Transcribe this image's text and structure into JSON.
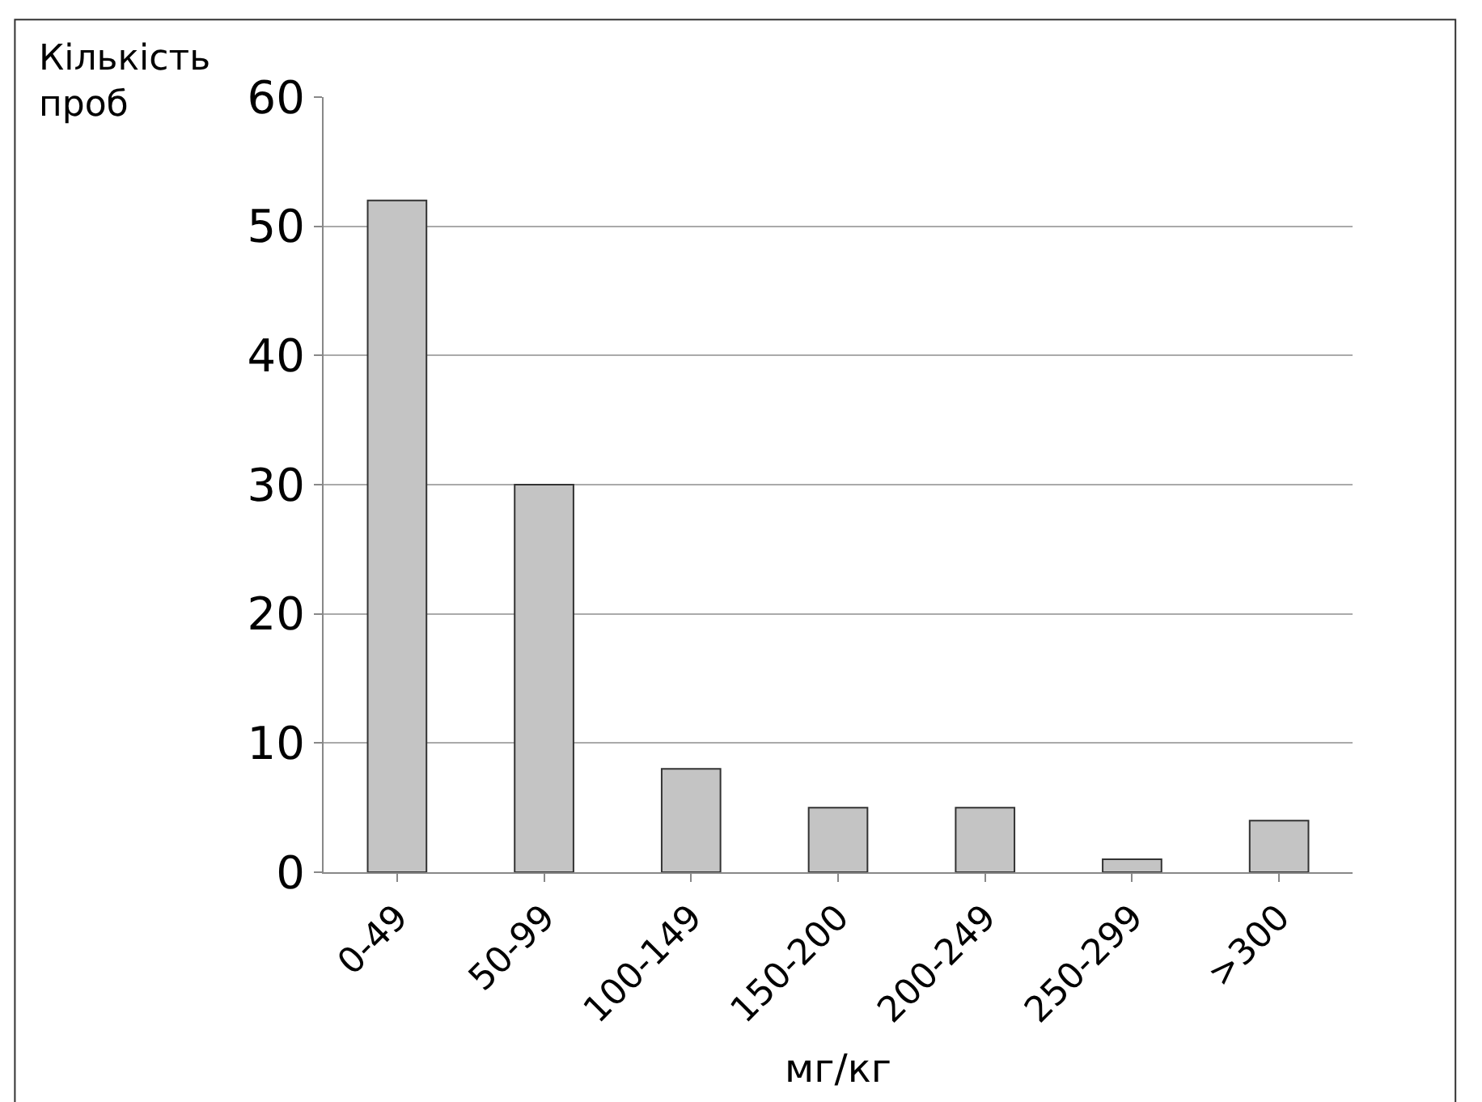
{
  "chart_data": {
    "type": "bar",
    "categories": [
      "0-49",
      "50-99",
      "100-149",
      "150-200",
      "200-249",
      "250-299",
      ">300"
    ],
    "values": [
      52,
      30,
      8,
      5,
      5,
      1,
      4
    ],
    "color": "#c4c4c4",
    "ylabel": "Кількість проб",
    "xlabel": "мг/кг",
    "ylim": [
      0,
      60
    ],
    "yticks": [
      0,
      10,
      20,
      30,
      40,
      50,
      60
    ],
    "grid": "y"
  }
}
